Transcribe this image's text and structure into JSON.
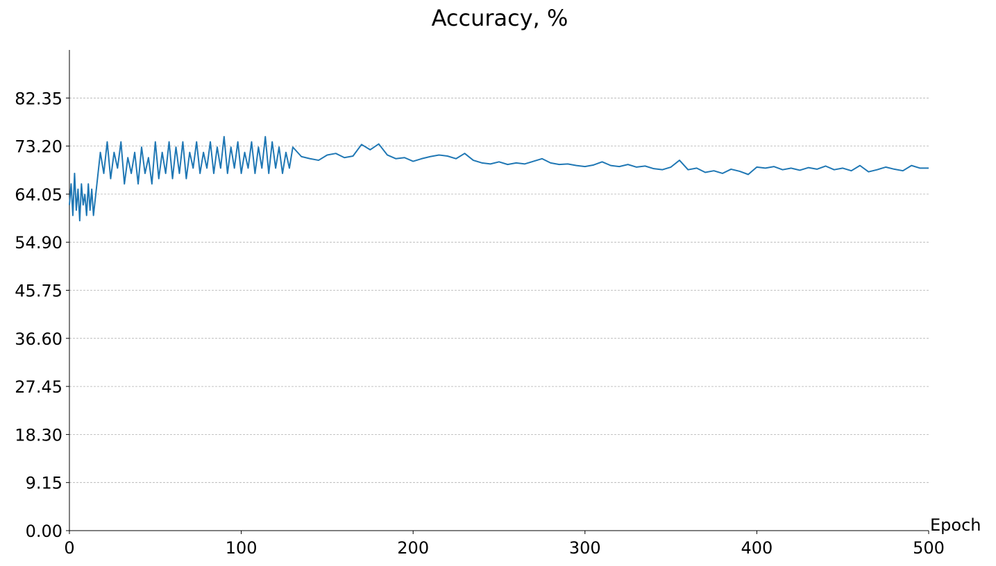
{
  "chart_data": {
    "type": "line",
    "title": "Accuracy, %",
    "x_label": "Epoch",
    "xlim": [
      0,
      500
    ],
    "xticks": [
      0,
      100,
      200,
      300,
      400,
      500
    ],
    "ylim": [
      0,
      91.5
    ],
    "yticks": [
      {
        "value": 0,
        "label": "0.00"
      },
      9.15,
      {
        "value": 18.3,
        "label": "18.30"
      },
      27.45,
      {
        "value": 36.6,
        "label": "36.60"
      },
      45.75,
      {
        "value": 54.9,
        "label": "54.90"
      },
      64.05,
      {
        "value": 73.2,
        "label": "73.20"
      },
      82.35
    ],
    "grid": true,
    "series": [
      {
        "color": "#1f77b4",
        "x": [
          0,
          1,
          2,
          3,
          4,
          5,
          6,
          7,
          8,
          9,
          10,
          11,
          12,
          13,
          14,
          16,
          18,
          20,
          22,
          24,
          26,
          28,
          30,
          32,
          34,
          36,
          38,
          40,
          42,
          44,
          46,
          48,
          50,
          52,
          54,
          56,
          58,
          60,
          62,
          64,
          66,
          68,
          70,
          72,
          74,
          76,
          78,
          80,
          82,
          84,
          86,
          88,
          90,
          92,
          94,
          96,
          98,
          100,
          102,
          104,
          106,
          108,
          110,
          112,
          114,
          116,
          118,
          120,
          122,
          124,
          126,
          128,
          130,
          135,
          140,
          145,
          150,
          155,
          160,
          165,
          170,
          175,
          180,
          185,
          190,
          195,
          200,
          205,
          210,
          215,
          220,
          225,
          230,
          235,
          240,
          245,
          250,
          255,
          260,
          265,
          270,
          275,
          280,
          285,
          290,
          295,
          300,
          305,
          310,
          315,
          320,
          325,
          330,
          335,
          340,
          345,
          350,
          355,
          360,
          365,
          370,
          375,
          380,
          385,
          390,
          395,
          400,
          405,
          410,
          415,
          420,
          425,
          430,
          435,
          440,
          445,
          450,
          455,
          460,
          465,
          470,
          475,
          480,
          485,
          490,
          495,
          500
        ],
        "values": [
          62,
          66,
          60,
          68,
          61,
          65,
          59,
          66,
          62,
          64,
          60,
          66,
          61,
          65,
          60,
          66,
          72,
          68,
          74,
          67,
          72,
          69,
          74,
          66,
          71,
          68,
          72,
          66,
          73,
          68,
          71,
          66,
          74,
          67,
          72,
          68,
          74,
          67,
          73,
          68,
          74,
          67,
          72,
          69,
          74,
          68,
          72,
          69,
          74,
          68,
          73,
          69,
          75,
          68,
          73,
          69,
          74,
          68,
          72,
          69,
          74,
          68,
          73,
          69,
          75,
          68,
          74,
          69,
          73,
          68,
          72,
          69,
          73,
          71.2,
          70.8,
          70.5,
          71.5,
          71.8,
          71,
          71.3,
          73.5,
          72.5,
          73.6,
          71.5,
          70.8,
          71,
          70.3,
          70.8,
          71.2,
          71.5,
          71.3,
          70.8,
          71.8,
          70.5,
          70,
          69.8,
          70.2,
          69.7,
          70,
          69.8,
          70.3,
          70.8,
          70,
          69.7,
          69.8,
          69.5,
          69.3,
          69.6,
          70.2,
          69.5,
          69.3,
          69.7,
          69.2,
          69.4,
          68.9,
          68.7,
          69.2,
          70.5,
          68.7,
          69,
          68.2,
          68.5,
          68,
          68.8,
          68.4,
          67.8,
          69.2,
          69,
          69.3,
          68.7,
          69,
          68.6,
          69.1,
          68.8,
          69.4,
          68.7,
          69,
          68.5,
          69.5,
          68.3,
          68.7,
          69.2,
          68.8,
          68.5,
          69.5,
          69,
          69
        ]
      }
    ]
  }
}
